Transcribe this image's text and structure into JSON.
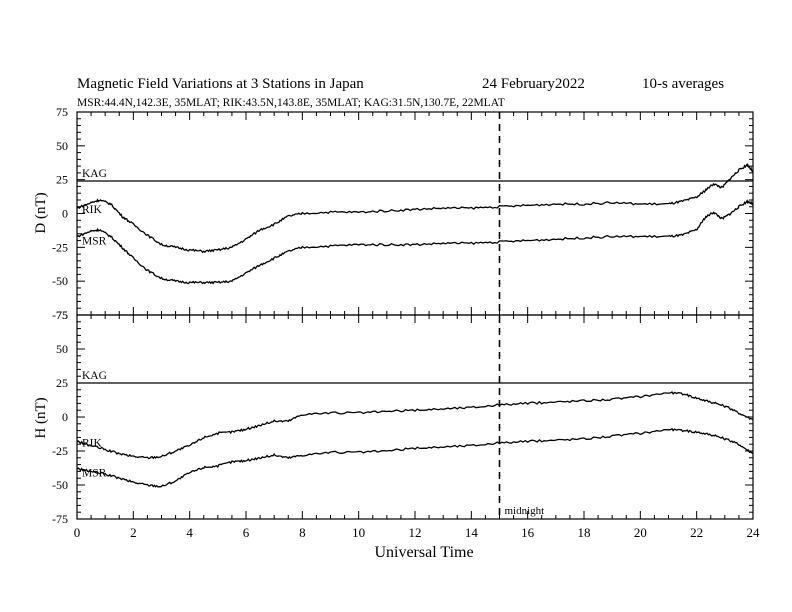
{
  "header": {
    "title": "Magnetic Field Variations at 3 Stations in Japan",
    "date": "24 February2022",
    "averaging": "10-s averages",
    "stations_line": "MSR:44.4N,142.3E, 35MLAT;  RIK:43.5N,143.8E, 35MLAT;  KAG:31.5N,130.7E, 22MLAT"
  },
  "chart_data": [
    {
      "type": "line",
      "panel": "top",
      "ylabel": "D (nT)",
      "ylim": [
        -75,
        75
      ],
      "yticks": [
        75,
        50,
        25,
        0,
        -25,
        -50,
        -75
      ],
      "xlim": [
        0,
        24
      ],
      "series": [
        {
          "name": "KAG",
          "x": [
            0,
            24
          ],
          "y": [
            24,
            24
          ]
        },
        {
          "name": "RIK",
          "x": [
            0,
            0.5,
            0.8,
            1.2,
            1.6,
            2.0,
            2.5,
            3.0,
            3.5,
            4.0,
            4.5,
            5.0,
            5.5,
            6.0,
            6.5,
            7.0,
            7.5,
            8.0,
            9.0,
            10.0,
            11.0,
            12.0,
            13.0,
            14.0,
            15.0,
            16.0,
            17.0,
            18.0,
            19.0,
            20.0,
            21.0,
            21.5,
            22.0,
            22.3,
            22.6,
            22.9,
            23.2,
            23.5,
            23.8,
            24.0
          ],
          "y": [
            4,
            8,
            10,
            7,
            -2,
            -8,
            -16,
            -23,
            -25,
            -27,
            -28,
            -27,
            -25,
            -19,
            -12,
            -8,
            -2,
            0,
            1,
            1,
            2,
            3,
            4,
            4,
            5,
            6,
            7,
            7,
            8,
            7,
            7,
            9,
            12,
            17,
            22,
            19,
            26,
            32,
            36,
            31
          ]
        },
        {
          "name": "MSR",
          "x": [
            0,
            0.5,
            0.8,
            1.2,
            1.6,
            2.0,
            2.5,
            3.0,
            3.5,
            4.0,
            4.5,
            5.0,
            5.5,
            6.0,
            6.5,
            7.0,
            7.5,
            8.0,
            9.0,
            10.0,
            11.0,
            12.0,
            13.0,
            14.0,
            15.0,
            16.0,
            17.0,
            18.0,
            19.0,
            20.0,
            21.0,
            21.5,
            22.0,
            22.3,
            22.6,
            22.9,
            23.2,
            23.5,
            23.8,
            24.0
          ],
          "y": [
            -17,
            -13,
            -12,
            -17,
            -25,
            -33,
            -42,
            -48,
            -50,
            -51,
            -51,
            -51,
            -50,
            -44,
            -38,
            -33,
            -28,
            -25,
            -24,
            -23,
            -23,
            -23,
            -22,
            -22,
            -21,
            -20,
            -19,
            -18,
            -17,
            -17,
            -17,
            -16,
            -12,
            -3,
            1,
            -4,
            0,
            5,
            9,
            7
          ]
        }
      ],
      "annotations": [
        "KAG",
        "RIK",
        "MSR"
      ]
    },
    {
      "type": "line",
      "panel": "bottom",
      "ylabel": "H (nT)",
      "xlabel": "Universal Time",
      "ylim": [
        -75,
        75
      ],
      "yticks": [
        75,
        50,
        25,
        0,
        -25,
        -50,
        -75
      ],
      "xlim": [
        0,
        24
      ],
      "xticks": [
        0,
        2,
        4,
        6,
        8,
        10,
        12,
        14,
        16,
        18,
        20,
        22,
        24
      ],
      "series": [
        {
          "name": "KAG",
          "x": [
            0,
            24
          ],
          "y": [
            25,
            25
          ]
        },
        {
          "name": "RIK",
          "x": [
            0,
            0.5,
            1.0,
            1.5,
            2.0,
            2.5,
            3.0,
            3.5,
            4.0,
            4.5,
            5.0,
            5.5,
            6.0,
            6.5,
            7.0,
            7.5,
            8.0,
            9.0,
            10.0,
            11.0,
            12.0,
            13.0,
            14.0,
            15.0,
            16.0,
            17.0,
            18.0,
            19.0,
            20.0,
            21.0,
            21.5,
            22.0,
            22.5,
            23.0,
            23.5,
            24.0
          ],
          "y": [
            -18,
            -21,
            -24,
            -27,
            -29,
            -30,
            -29,
            -25,
            -21,
            -15,
            -12,
            -11,
            -9,
            -6,
            -3,
            -3,
            2,
            3,
            3,
            4,
            5,
            6,
            7,
            9,
            10,
            11,
            12,
            13,
            15,
            18,
            17,
            14,
            11,
            8,
            3,
            -2
          ]
        },
        {
          "name": "MSR",
          "x": [
            0,
            0.5,
            1.0,
            1.5,
            2.0,
            2.5,
            3.0,
            3.5,
            4.0,
            4.5,
            5.0,
            5.5,
            6.0,
            6.5,
            7.0,
            7.5,
            8.0,
            9.0,
            10.0,
            11.0,
            12.0,
            13.0,
            14.0,
            15.0,
            16.0,
            17.0,
            18.0,
            19.0,
            20.0,
            21.0,
            21.5,
            22.0,
            22.5,
            23.0,
            23.5,
            24.0
          ],
          "y": [
            -38,
            -40,
            -42,
            -45,
            -48,
            -50,
            -51,
            -47,
            -41,
            -37,
            -36,
            -33,
            -32,
            -30,
            -28,
            -30,
            -28,
            -26,
            -26,
            -25,
            -23,
            -22,
            -21,
            -19,
            -18,
            -17,
            -16,
            -14,
            -12,
            -9,
            -10,
            -11,
            -13,
            -16,
            -20,
            -27
          ]
        }
      ],
      "annotations": [
        "KAG",
        "RIK",
        "MSR"
      ]
    }
  ],
  "midnight_marker": {
    "x": 15,
    "label": "midnight"
  }
}
